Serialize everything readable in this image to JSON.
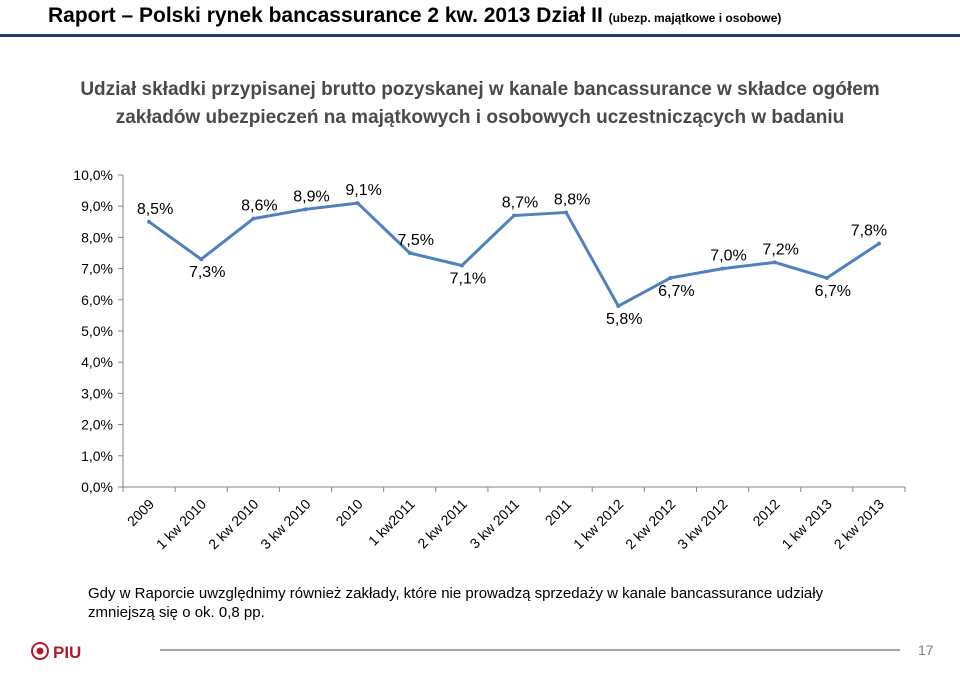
{
  "header": {
    "title": "Raport – Polski rynek bancassurance 2 kw. 2013 Dział II",
    "subtitle": "(ubezp. majątkowe i osobowe)"
  },
  "footer": {
    "note": "Gdy w Raporcie uwzględnimy również zakłady, które nie prowadzą sprzedaży w kanale bancassurance udziały zmniejszą się o ok. 0,8 pp.",
    "logo_text": "PIU",
    "page_number": "17"
  },
  "colors": {
    "line": "#4f81bd",
    "header_line": "#1f3a6b",
    "logo": "#b01c2e"
  },
  "chart_data": {
    "type": "line",
    "title": "Udział składki przypisanej brutto pozyskanej w kanale bancassurance w składce ogółem zakładów ubezpieczeń na majątkowych i osobowych uczestniczących w badaniu",
    "categories": [
      "2009",
      "1 kw 2010",
      "2 kw 2010",
      "3 kw 2010",
      "2010",
      "1 kw2011",
      "2 kw 2011",
      "3 kw 2011",
      "2011",
      "1 kw 2012",
      "2 kw 2012",
      "3 kw 2012",
      "2012",
      "1 kw 2013",
      "2 kw 2013"
    ],
    "values": [
      8.5,
      7.3,
      8.6,
      8.9,
      9.1,
      7.5,
      7.1,
      8.7,
      8.8,
      5.8,
      6.7,
      7.0,
      7.2,
      6.7,
      7.8
    ],
    "labels": [
      "8,5%",
      "7,3%",
      "8,6%",
      "8,9%",
      "9,1%",
      "7,5%",
      "7,1%",
      "8,7%",
      "8,8%",
      "5,8%",
      "6,7%",
      "7,0%",
      "7,2%",
      "6,7%",
      "7,8%"
    ],
    "yticks": [
      "0,0%",
      "1,0%",
      "2,0%",
      "3,0%",
      "4,0%",
      "5,0%",
      "6,0%",
      "7,0%",
      "8,0%",
      "9,0%",
      "10,0%"
    ],
    "ylim": [
      0,
      10
    ],
    "grid": false,
    "legend": "none"
  }
}
